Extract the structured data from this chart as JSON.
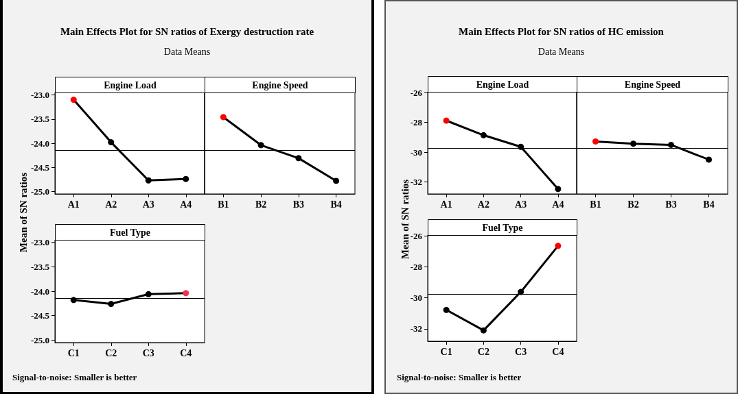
{
  "chart_data": [
    {
      "type": "line",
      "title": "Engine Load",
      "ylabel": "Mean of SN ratios",
      "annotations": [
        "Main Effects Plot for SN ratios of Exergy destruction rate",
        "Data Means",
        "Signal-to-noise: Smaller is better"
      ],
      "categories": [
        "A1",
        "A2",
        "A3",
        "A4"
      ],
      "series": [
        {
          "color": "#000000",
          "colors": [
            "#ff0000",
            "#000000",
            "#000000",
            "#000000"
          ],
          "values": [
            -23.1,
            -23.98,
            -24.77,
            -24.74
          ]
        }
      ],
      "ylim": [
        -25.05,
        -22.95
      ],
      "yticks": [
        {
          "value": -25,
          "label": "-25.0"
        },
        {
          "value": -24.5,
          "label": "-24.5"
        },
        {
          "value": -24,
          "label": "-24.0"
        },
        {
          "value": -23.5,
          "label": "-23.5"
        },
        {
          "value": -23,
          "label": "-23.0"
        }
      ],
      "ref_lines": [
        {
          "axis": "y",
          "value": -24.15,
          "color": "#000000"
        }
      ],
      "marker": "circle",
      "line_style": "solid",
      "grid": false
    },
    {
      "type": "line",
      "title": "Engine Speed",
      "categories": [
        "B1",
        "B2",
        "B3",
        "B4"
      ],
      "series": [
        {
          "color": "#000000",
          "colors": [
            "#ff0000",
            "#000000",
            "#000000",
            "#000000"
          ],
          "values": [
            -23.46,
            -24.04,
            -24.31,
            -24.78
          ]
        }
      ],
      "ylim": [
        -25.05,
        -22.95
      ],
      "ref_lines": [
        {
          "axis": "y",
          "value": -24.15,
          "color": "#000000"
        }
      ],
      "marker": "circle",
      "line_style": "solid",
      "grid": false,
      "tick_labels": "x"
    },
    {
      "type": "line",
      "title": "Fuel Type",
      "categories": [
        "C1",
        "C2",
        "C3",
        "C4"
      ],
      "series": [
        {
          "color": "#000000",
          "colors": [
            "#000000",
            "#000000",
            "#000000",
            "#ee3355"
          ],
          "values": [
            -24.18,
            -24.26,
            -24.06,
            -24.04
          ]
        }
      ],
      "ylim": [
        -25.05,
        -22.95
      ],
      "yticks": [
        {
          "value": -25,
          "label": "-25.0"
        },
        {
          "value": -24.5,
          "label": "-24.5"
        },
        {
          "value": -24,
          "label": "-24.0"
        },
        {
          "value": -23.5,
          "label": "-23.5"
        },
        {
          "value": -23,
          "label": "-23.0"
        }
      ],
      "ref_lines": [
        {
          "axis": "y",
          "value": -24.15,
          "color": "#000000"
        }
      ],
      "marker": "circle",
      "line_style": "solid",
      "grid": false
    },
    {
      "type": "line",
      "title": "Engine Load",
      "ylabel": "Mean of SN ratios",
      "annotations": [
        "Main Effects Plot for SN ratios of HC emission",
        "Data Means",
        "Signal-to-noise: Smaller is better"
      ],
      "categories": [
        "A1",
        "A2",
        "A3",
        "A4"
      ],
      "series": [
        {
          "color": "#000000",
          "colors": [
            "#ff0000",
            "#000000",
            "#000000",
            "#000000"
          ],
          "values": [
            -27.88,
            -28.86,
            -29.64,
            -32.47
          ]
        }
      ],
      "ylim": [
        -32.8,
        -25.95
      ],
      "yticks": [
        -32,
        -30,
        -28,
        -26
      ],
      "ref_lines": [
        {
          "axis": "y",
          "value": -29.75,
          "color": "#000000"
        }
      ],
      "marker": "circle",
      "line_style": "solid",
      "grid": false
    },
    {
      "type": "line",
      "title": "Engine Speed",
      "categories": [
        "B1",
        "B2",
        "B3",
        "B4"
      ],
      "series": [
        {
          "color": "#000000",
          "colors": [
            "#ff0000",
            "#000000",
            "#000000",
            "#000000"
          ],
          "values": [
            -29.28,
            -29.43,
            -29.51,
            -30.5
          ]
        }
      ],
      "ylim": [
        -32.8,
        -25.95
      ],
      "ref_lines": [
        {
          "axis": "y",
          "value": -29.75,
          "color": "#000000"
        }
      ],
      "marker": "circle",
      "line_style": "solid",
      "grid": false,
      "tick_labels": "x"
    },
    {
      "type": "line",
      "title": "Fuel Type",
      "categories": [
        "C1",
        "C2",
        "C3",
        "C4"
      ],
      "series": [
        {
          "color": "#000000",
          "colors": [
            "#000000",
            "#000000",
            "#000000",
            "#ff0000"
          ],
          "values": [
            -30.78,
            -32.1,
            -29.62,
            -26.65
          ]
        }
      ],
      "ylim": [
        -32.8,
        -25.95
      ],
      "yticks": [
        -32,
        -30,
        -28,
        -26
      ],
      "ref_lines": [
        {
          "axis": "y",
          "value": -29.77,
          "color": "#000000"
        }
      ],
      "marker": "circle",
      "line_style": "solid",
      "grid": false
    }
  ]
}
